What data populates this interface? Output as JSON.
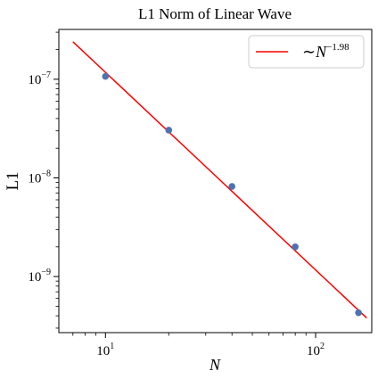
{
  "chart_data": {
    "type": "scatter",
    "title": "L1 Norm of Linear Wave",
    "xlabel": "N",
    "ylabel": "L1",
    "xscale": "log",
    "yscale": "log",
    "xlim": [
      6,
      185
    ],
    "ylim": [
      2.7e-10,
      3.2e-07
    ],
    "x_ticks": [
      {
        "value": 10,
        "base": "10",
        "exp": "1"
      },
      {
        "value": 100,
        "base": "10",
        "exp": "2"
      }
    ],
    "y_ticks": [
      {
        "value": 1e-07,
        "base": "10",
        "exp": "−7"
      },
      {
        "value": 1e-08,
        "base": "10",
        "exp": "−8"
      },
      {
        "value": 1e-09,
        "base": "10",
        "exp": "−9"
      }
    ],
    "series": [
      {
        "kind": "scatter",
        "color": "#4c72b0",
        "x": [
          10,
          20,
          40,
          80,
          160
        ],
        "y": [
          1.07e-07,
          3.05e-08,
          8.2e-09,
          2e-09,
          4.3e-10
        ]
      },
      {
        "kind": "line",
        "name": "~N^-1.98",
        "color": "#ff0000",
        "x": [
          7,
          175
        ],
        "y": [
          2.4e-07,
          3.8e-10
        ]
      }
    ],
    "legend": {
      "position": "top-right",
      "prefix": "∼",
      "var": "N",
      "exponent": "−1.98"
    },
    "grid": false
  }
}
